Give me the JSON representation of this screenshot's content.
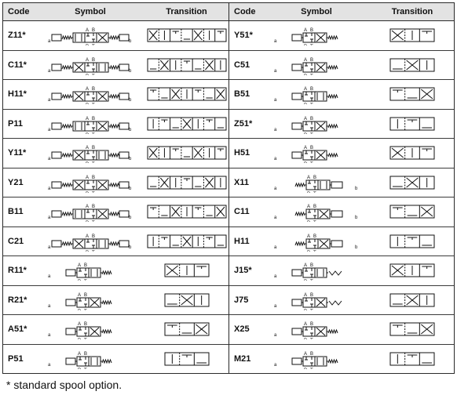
{
  "headers": {
    "code": "Code",
    "symbol": "Symbol",
    "transition": "Transition"
  },
  "left_rows": [
    {
      "code": "Z11*",
      "sym": "dual-a",
      "boxes": 3,
      "trans": 7
    },
    {
      "code": "C11*",
      "sym": "dual-a",
      "boxes": 3,
      "trans": 7
    },
    {
      "code": "H11*",
      "sym": "dual-a",
      "boxes": 3,
      "trans": 7
    },
    {
      "code": "P11",
      "sym": "dual-a",
      "boxes": 3,
      "trans": 7
    },
    {
      "code": "Y11*",
      "sym": "dual-a",
      "boxes": 3,
      "trans": 7
    },
    {
      "code": "Y21",
      "sym": "dual-a",
      "boxes": 3,
      "trans": 7
    },
    {
      "code": "B11",
      "sym": "dual-a",
      "boxes": 3,
      "trans": 7
    },
    {
      "code": "C21",
      "sym": "dual-a",
      "boxes": 3,
      "trans": 7
    },
    {
      "code": "R11*",
      "sym": "spring-right",
      "boxes": 2,
      "trans": 3
    },
    {
      "code": "R21*",
      "sym": "spring-right",
      "boxes": 2,
      "trans": 3
    },
    {
      "code": "A51*",
      "sym": "spring-right",
      "boxes": 2,
      "trans": 3
    },
    {
      "code": "P51",
      "sym": "spring-right",
      "boxes": 2,
      "trans": 3
    }
  ],
  "right_rows": [
    {
      "code": "Y51*",
      "sym": "spring-right",
      "boxes": 2,
      "trans": 3
    },
    {
      "code": "C51",
      "sym": "spring-right",
      "boxes": 2,
      "trans": 3
    },
    {
      "code": "B51",
      "sym": "spring-right",
      "boxes": 2,
      "trans": 3
    },
    {
      "code": "Z51*",
      "sym": "spring-right",
      "boxes": 2,
      "trans": 3
    },
    {
      "code": "H51",
      "sym": "spring-right",
      "boxes": 2,
      "trans": 3
    },
    {
      "code": "X11",
      "sym": "spring-left",
      "boxes": 2,
      "trans": 3
    },
    {
      "code": "C11",
      "sym": "spring-left",
      "boxes": 2,
      "trans": 3
    },
    {
      "code": "H11",
      "sym": "spring-left",
      "boxes": 2,
      "trans": 3
    },
    {
      "code": "J15*",
      "sym": "detent",
      "boxes": 2,
      "trans": 3
    },
    {
      "code": "J75",
      "sym": "detent",
      "boxes": 2,
      "trans": 3
    },
    {
      "code": "X25",
      "sym": "spring-right",
      "boxes": 2,
      "trans": 3
    },
    {
      "code": "M21",
      "sym": "spring-right",
      "boxes": 2,
      "trans": 3
    }
  ],
  "port_labels": {
    "a": "A",
    "b": "B",
    "p": "P",
    "t": "T",
    "sol_a": "a",
    "sol_b": "b"
  },
  "footnote": "* standard spool option."
}
